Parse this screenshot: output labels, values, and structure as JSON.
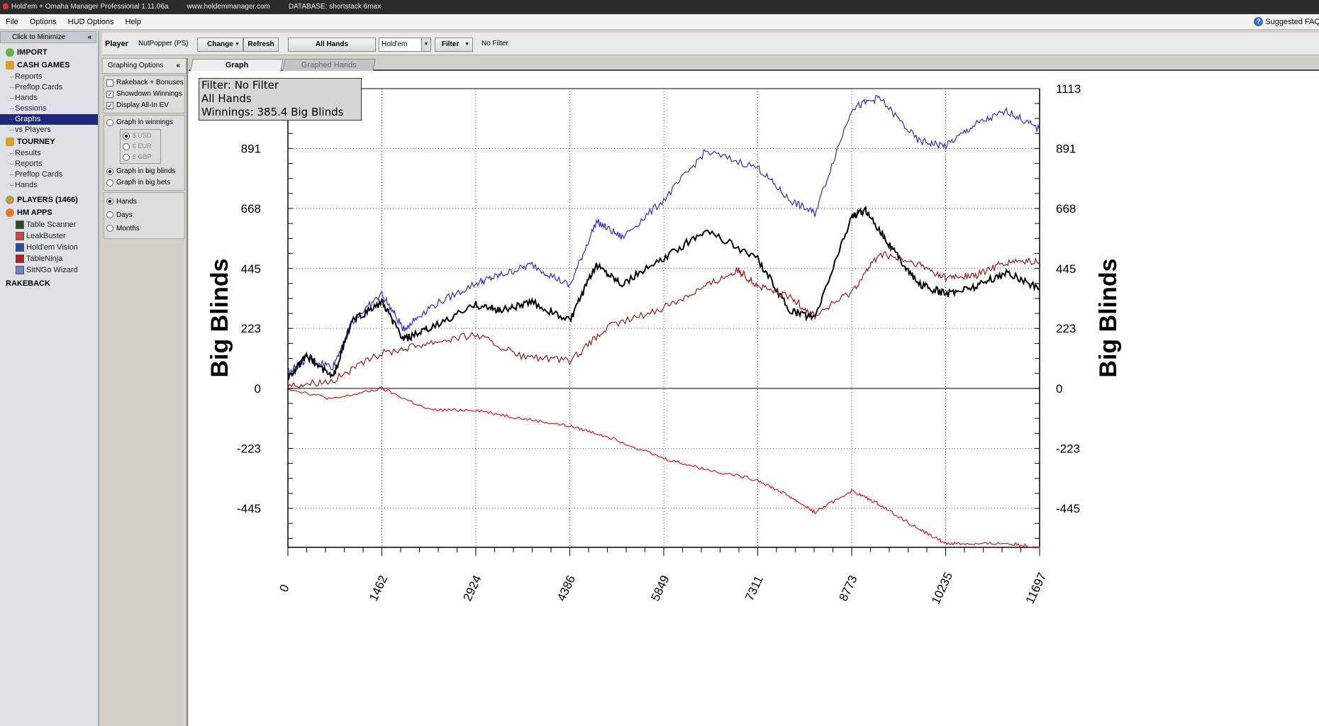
{
  "titlebar": {
    "app_title": "Hold'em + Omaha Manager Professional 1.11.06a",
    "url": "www.holdemmanager.com",
    "database": "DATABASE: shortstack 6max"
  },
  "menu": {
    "items": [
      "File",
      "Options",
      "HUD Options",
      "Help"
    ],
    "suggested": "Suggested FAQ"
  },
  "sidebar": {
    "minimize_label": "Click to Minimize",
    "import": "IMPORT",
    "cash_games": "CASH GAMES",
    "cash_items": [
      "Reports",
      "Preflop Cards",
      "Hands",
      "Sessions",
      "Graphs",
      "vs Players"
    ],
    "tourney": "TOURNEY",
    "tourney_items": [
      "Results",
      "Reports",
      "Preflop Cards",
      "Hands"
    ],
    "players": "PLAYERS (1466)",
    "hm_apps": "HM APPS",
    "apps": [
      "Table Scanner",
      "LeakBuster",
      "Hold'em Vision",
      "TableNinja",
      "SitNGo Wizard"
    ],
    "rakeback": "RAKEBACK"
  },
  "playerbar": {
    "player_label": "Player",
    "player_name": "NutPopper (PS)",
    "change": "Change",
    "refresh": "Refresh",
    "all_hands": "All Hands",
    "game": "Hold'em",
    "filter": "Filter",
    "filter_status": "No Filter"
  },
  "options": {
    "header": "Graphing Options",
    "rakeback": "Rakeback + Bonuses",
    "showdown": "Showdown Winnings",
    "allin_ev": "Display All-In EV",
    "graph_winnings": "Graph in winnings",
    "usd": "$ USD",
    "eur": "€ EUR",
    "gbp": "£ GBP",
    "big_blinds": "Graph in big blinds",
    "big_bets": "Graph in big bets",
    "hands": "Hands",
    "days": "Days",
    "months": "Months"
  },
  "tabs": [
    "Graph",
    "Graphed Hands"
  ],
  "filterbox": {
    "line1": "Filter: No Filter",
    "line2": "All Hands",
    "line3": "Winnings: 385.4 Big Blinds"
  },
  "chart_data": {
    "type": "line",
    "ylabel": "Big Blinds",
    "xlim": [
      0,
      11697
    ],
    "ylim": [
      -590,
      1113
    ],
    "x_ticks": [
      0,
      1462,
      2924,
      4386,
      5849,
      7311,
      8773,
      10235,
      11697
    ],
    "y_ticks": [
      -445,
      -223,
      0,
      223,
      445,
      668,
      891,
      1113
    ],
    "grid": true,
    "colors": {
      "blue": "#2b2bd6",
      "black": "#000000",
      "darkred": "#9b1a1a",
      "red": "#e01818"
    },
    "series": [
      {
        "color": "blue",
        "x": [
          0,
          300,
          700,
          1000,
          1462,
          1800,
          2200,
          2924,
          3300,
          3800,
          4386,
          4800,
          5200,
          5849,
          6500,
          7311,
          7800,
          8200,
          8773,
          9200,
          9800,
          10235,
          10700,
          11200,
          11697
        ],
        "y": [
          60,
          110,
          80,
          250,
          350,
          220,
          300,
          390,
          420,
          460,
          380,
          620,
          560,
          700,
          880,
          820,
          700,
          650,
          1040,
          1080,
          920,
          900,
          980,
          1030,
          960
        ]
      },
      {
        "color": "black",
        "x": [
          0,
          300,
          700,
          1000,
          1462,
          1800,
          2200,
          2924,
          3300,
          3800,
          4386,
          4800,
          5200,
          5849,
          6500,
          7311,
          7800,
          8200,
          8773,
          9000,
          9400,
          9800,
          10235,
          10700,
          11200,
          11697
        ],
        "y": [
          40,
          120,
          40,
          250,
          320,
          180,
          220,
          310,
          290,
          320,
          250,
          460,
          390,
          480,
          590,
          480,
          290,
          260,
          640,
          660,
          520,
          390,
          350,
          380,
          430,
          370
        ]
      },
      {
        "color": "darkred",
        "x": [
          0,
          700,
          1462,
          2200,
          2924,
          3600,
          4386,
          5000,
          5849,
          6500,
          7000,
          7311,
          7800,
          8200,
          8773,
          9200,
          9800,
          10235,
          10700,
          11200,
          11697
        ],
        "y": [
          10,
          30,
          130,
          170,
          200,
          120,
          100,
          230,
          300,
          380,
          440,
          380,
          340,
          270,
          360,
          500,
          460,
          410,
          420,
          470,
          470
        ]
      },
      {
        "color": "red",
        "x": [
          0,
          700,
          1462,
          2200,
          2924,
          3600,
          4386,
          5000,
          5849,
          6500,
          7311,
          7800,
          8200,
          8773,
          9200,
          9800,
          10235,
          10700,
          11200,
          11697
        ],
        "y": [
          0,
          -40,
          0,
          -80,
          -80,
          -110,
          -140,
          -180,
          -260,
          -300,
          -340,
          -400,
          -460,
          -380,
          -430,
          -520,
          -575,
          -578,
          -575,
          -590
        ]
      }
    ]
  }
}
